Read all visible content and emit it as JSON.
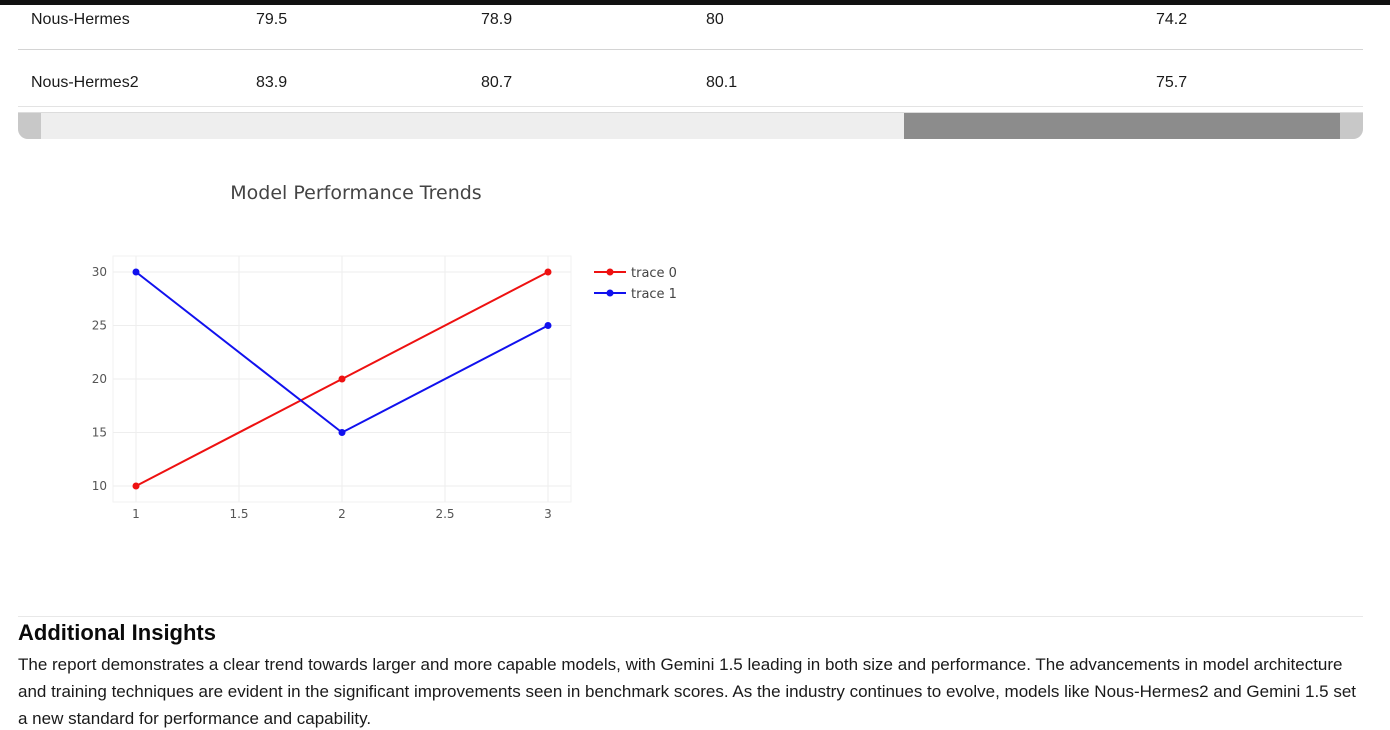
{
  "table": {
    "rows": [
      {
        "model": "Nous-Hermes",
        "col1": "79.5",
        "col2": "78.9",
        "col3": "80",
        "col4": "74.2"
      },
      {
        "model": "Nous-Hermes2",
        "col1": "83.9",
        "col2": "80.7",
        "col3": "80.1",
        "col4": "75.7"
      }
    ]
  },
  "chart_data": {
    "type": "line",
    "title": "Model Performance Trends",
    "xlabel": "",
    "ylabel": "",
    "x": [
      1,
      2,
      3
    ],
    "series": [
      {
        "name": "trace 0",
        "color": "#ee1111",
        "values": [
          10,
          20,
          30
        ]
      },
      {
        "name": "trace 1",
        "color": "#1111ee",
        "values": [
          30,
          15,
          25
        ]
      }
    ],
    "xlim": [
      1,
      3
    ],
    "ylim": [
      10,
      30
    ],
    "xticks": [
      1,
      1.5,
      2,
      2.5,
      3
    ],
    "yticks": [
      10,
      15,
      20,
      25,
      30
    ],
    "grid": true,
    "legend_position": "top-right"
  },
  "insights": {
    "title": "Additional Insights",
    "body": "The report demonstrates a clear trend towards larger and more capable models, with Gemini 1.5 leading in both size and performance. The advancements in model architecture and training techniques are evident in the significant improvements seen in benchmark scores. As the industry continues to evolve, models like Nous-Hermes2 and Gemini 1.5 set a new standard for performance and capability."
  }
}
